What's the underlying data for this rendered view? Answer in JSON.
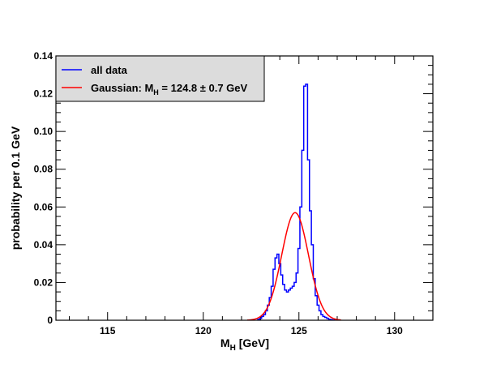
{
  "chart_data": {
    "type": "line",
    "title": "",
    "xlabel_main": "M",
    "xlabel_sub": "H",
    "xlabel_unit": " [GeV]",
    "ylabel": "probability per 0.1 GeV",
    "xlim": [
      112.3,
      132.0
    ],
    "ylim": [
      0,
      0.14
    ],
    "xticks": [
      115,
      120,
      125,
      130
    ],
    "yticks": [
      0,
      0.02,
      0.04,
      0.06,
      0.08,
      0.1,
      0.12,
      0.14
    ],
    "ytick_labels": [
      "0",
      "0.02",
      "0.04",
      "0.06",
      "0.08",
      "0.10",
      "0.12",
      "0.14"
    ],
    "legend_position": "top-left",
    "series": [
      {
        "name": "all data",
        "kind": "step",
        "color": "#0000ff",
        "bin_width": 0.1,
        "x": [
          122.9,
          123.0,
          123.1,
          123.2,
          123.3,
          123.4,
          123.5,
          123.6,
          123.7,
          123.8,
          123.9,
          124.0,
          124.1,
          124.2,
          124.3,
          124.4,
          124.5,
          124.6,
          124.7,
          124.8,
          124.9,
          125.0,
          125.1,
          125.2,
          125.3,
          125.4,
          125.5,
          125.6,
          125.7,
          125.8,
          125.9,
          126.0,
          126.1,
          126.2,
          126.3,
          126.4,
          126.5,
          126.6,
          126.7,
          126.8
        ],
        "values": [
          0.0005,
          0.001,
          0.002,
          0.003,
          0.005,
          0.008,
          0.012,
          0.018,
          0.027,
          0.033,
          0.035,
          0.03,
          0.024,
          0.019,
          0.016,
          0.015,
          0.016,
          0.017,
          0.018,
          0.02,
          0.025,
          0.038,
          0.06,
          0.09,
          0.124,
          0.125,
          0.085,
          0.058,
          0.04,
          0.022,
          0.013,
          0.008,
          0.005,
          0.003,
          0.002,
          0.0015,
          0.001,
          0.0005,
          0.0003,
          0.0001
        ]
      },
      {
        "name": "Gaussian",
        "kind": "gaussian",
        "color": "#ff0000",
        "mean": 124.8,
        "sigma": 0.7,
        "peak": 0.057,
        "x_range": [
          122.3,
          127.2
        ]
      }
    ]
  },
  "legend": {
    "items": [
      {
        "label": "all data"
      },
      {
        "label_main": "Gaussian: M",
        "label_sub": "H",
        "label_rest": " = 124.8 ± 0.7 GeV"
      }
    ]
  }
}
